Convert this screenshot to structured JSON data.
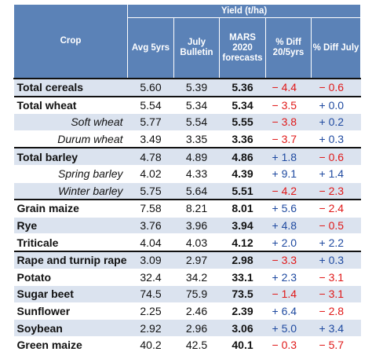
{
  "header": {
    "yield_group": "Yield (t/ha)",
    "crop": "Crop",
    "avg": "Avg 5yrs",
    "july_1": "July",
    "july_2": "Bulletin",
    "mars_1": "MARS",
    "mars_2": "2020",
    "mars_3": "forecasts",
    "diff5_1": "% Diff",
    "diff5_2": "20/5yrs",
    "diffjul": "% Diff July"
  },
  "colors": {
    "header_bg": "#5b82b7",
    "row_alt_bg": "#dbe3ef",
    "negative": "#e01818",
    "positive": "#1f4aa0"
  },
  "rows": [
    {
      "crop": "Total cereals",
      "avg": "5.60",
      "july": "5.39",
      "mars": "5.36",
      "diff5": "− 4.4",
      "diff_july": "− 0.6"
    },
    {
      "crop": "Total wheat",
      "avg": "5.54",
      "july": "5.34",
      "mars": "5.34",
      "diff5": "− 3.5",
      "diff_july": "+ 0.0"
    },
    {
      "crop": "Soft wheat",
      "avg": "5.77",
      "july": "5.54",
      "mars": "5.55",
      "diff5": "− 3.8",
      "diff_july": "+ 0.2"
    },
    {
      "crop": "Durum wheat",
      "avg": "3.49",
      "july": "3.35",
      "mars": "3.36",
      "diff5": "− 3.7",
      "diff_july": "+ 0.3"
    },
    {
      "crop": "Total barley",
      "avg": "4.78",
      "july": "4.89",
      "mars": "4.86",
      "diff5": "+ 1.8",
      "diff_july": "− 0.6"
    },
    {
      "crop": "Spring barley",
      "avg": "4.02",
      "july": "4.33",
      "mars": "4.39",
      "diff5": "+ 9.1",
      "diff_july": "+ 1.4"
    },
    {
      "crop": "Winter barley",
      "avg": "5.75",
      "july": "5.64",
      "mars": "5.51",
      "diff5": "− 4.2",
      "diff_july": "− 2.3"
    },
    {
      "crop": "Grain maize",
      "avg": "7.58",
      "july": "8.21",
      "mars": "8.01",
      "diff5": "+ 5.6",
      "diff_july": "− 2.4"
    },
    {
      "crop": "Rye",
      "avg": "3.76",
      "july": "3.96",
      "mars": "3.94",
      "diff5": "+ 4.8",
      "diff_july": "− 0.5"
    },
    {
      "crop": "Triticale",
      "avg": "4.04",
      "july": "4.03",
      "mars": "4.12",
      "diff5": "+ 2.0",
      "diff_july": "+ 2.2"
    },
    {
      "crop": "Rape and turnip rape",
      "avg": "3.09",
      "july": "2.97",
      "mars": "2.98",
      "diff5": "− 3.3",
      "diff_july": "+ 0.3"
    },
    {
      "crop": "Potato",
      "avg": "32.4",
      "july": "34.2",
      "mars": "33.1",
      "diff5": "+ 2.3",
      "diff_july": "− 3.1"
    },
    {
      "crop": "Sugar beet",
      "avg": "74.5",
      "july": "75.9",
      "mars": "73.5",
      "diff5": "− 1.4",
      "diff_july": "− 3.1"
    },
    {
      "crop": "Sunflower",
      "avg": "2.25",
      "july": "2.46",
      "mars": "2.39",
      "diff5": "+ 6.4",
      "diff_july": "− 2.8"
    },
    {
      "crop": "Soybean",
      "avg": "2.92",
      "july": "2.96",
      "mars": "3.06",
      "diff5": "+ 5.0",
      "diff_july": "+ 3.4"
    },
    {
      "crop": "Green maize",
      "avg": "40.2",
      "july": "42.5",
      "mars": "40.1",
      "diff5": "− 0.3",
      "diff_july": "− 5.7"
    }
  ]
}
